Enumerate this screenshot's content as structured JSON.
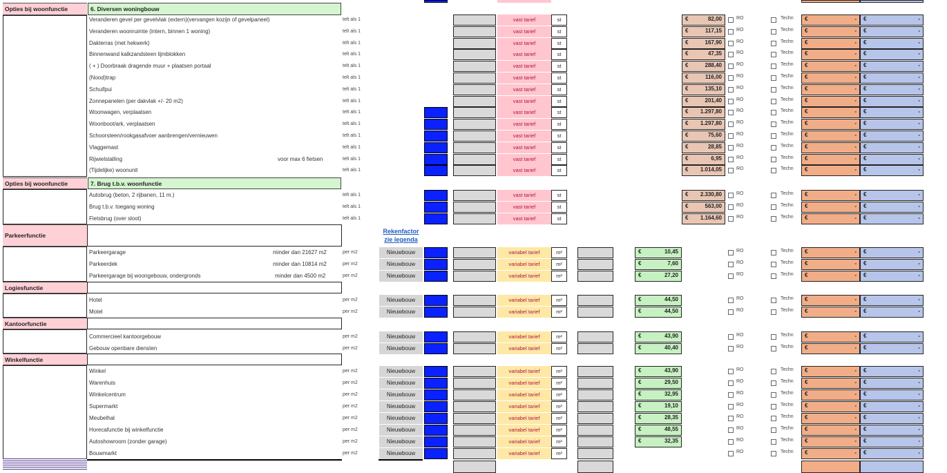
{
  "sections": [
    {
      "category": "Opties bij woonfunctie",
      "title": "6. Diversen woningbouw"
    },
    {
      "category": "Opties bij woonfunctie",
      "title": "7. Brug t.b.v. woonfunctie"
    },
    {
      "category": "Parkeerfunctie",
      "title": ""
    },
    {
      "category": "Logiesfunctie",
      "title": ""
    },
    {
      "category": "Kantoorfunctie",
      "title": ""
    },
    {
      "category": "Winkelfunctie",
      "title": ""
    }
  ],
  "labels": {
    "telt": "telt als 1",
    "perm2": "per m2",
    "vast": "vast tarief",
    "variabel": "variabel tarief",
    "st": "st",
    "m2": "m²",
    "nieuwbouw": "Nieuwbouw",
    "ro": "RO",
    "techn": "Techn",
    "eur": "€",
    "dash": "-",
    "rekenfactor": "Rekenfactor",
    "legenda": "zie legenda"
  },
  "rows_fixed": [
    {
      "name": "Veranderen gevel per gevelvlak (extern)(vervangen kozijn of gevelpaneel)",
      "price": "82,00",
      "blue": false
    },
    {
      "name": "Veranderen woonruimte (intern, binnen 1 woning)",
      "price": "117,15",
      "blue": false
    },
    {
      "name": "Dakterras (met hekwerk)",
      "price": "167,90",
      "blue": false
    },
    {
      "name": "Binnenwand kalkzandsteen lijmblokken",
      "price": "47,35",
      "blue": false
    },
    {
      "name": "( + )  Doorbraak dragende muur + plaatsen portaal",
      "price": "288,40",
      "blue": false
    },
    {
      "name": "(Nood)trap",
      "price": "116,00",
      "blue": false
    },
    {
      "name": "Schuifpui",
      "price": "135,10",
      "blue": false
    },
    {
      "name": "Zonnepanelen (per dakvlak +/- 20 m2)",
      "price": "201,40",
      "blue": false
    },
    {
      "name": "Woonwagen,     verplaatsen",
      "price": "1.297,80",
      "blue": true
    },
    {
      "name": "Woonboot/ark,  verplaatsen",
      "price": "1.297,80",
      "blue": true
    },
    {
      "name": "Schoorsteen/rookgasafvoer aanbrengen/vernieuwen",
      "price": "75,60",
      "blue": true
    },
    {
      "name": "Vlaggemast",
      "price": "28,85",
      "blue": true
    },
    {
      "name": "Rijwielstalling",
      "note": "voor max 6 fietsen",
      "price": "6,95",
      "blue": true
    },
    {
      "name": "(Tijdelijke) woonunit",
      "price": "1.014,05",
      "blue": true
    }
  ],
  "rows_brug": [
    {
      "name": "Autobrug (beton, 2 rijbanen, 11 m.)",
      "price": "2.330,80"
    },
    {
      "name": "Brug t.b.v. toegang woning",
      "price": "563,00"
    },
    {
      "name": "Fietsbrug (over sloot)",
      "price": "1.164,60"
    }
  ],
  "rows_parkeer": [
    {
      "name": "Parkeergarage",
      "note": "minder dan 21627 m2",
      "price": "10,45"
    },
    {
      "name": "Parkeerdek",
      "note": "minder dan 10814 m2",
      "price": "7,60"
    },
    {
      "name": "Parkeergarage bij woongebouw, ondergronds",
      "note": "minder dan 4500 m2",
      "price": "27,20"
    }
  ],
  "rows_logies": [
    {
      "name": "Hotel",
      "price": "44,50"
    },
    {
      "name": "Motel",
      "price": "44,50"
    }
  ],
  "rows_kantoor": [
    {
      "name": "Commercieel kantoorgebouw",
      "price": "43,90"
    },
    {
      "name": "Gebouw openbare diensten",
      "price": "40,40"
    }
  ],
  "rows_winkel": [
    {
      "name": "Winkel",
      "price": "43,90"
    },
    {
      "name": "Warenhuis",
      "price": "29,50"
    },
    {
      "name": "Winkelcentrum",
      "price": "32,95"
    },
    {
      "name": "Supermarkt",
      "price": "19,10"
    },
    {
      "name": "Meubelhal",
      "price": "28,35"
    },
    {
      "name": "Horecafunctie bij winkelfunctie",
      "price": "48,55"
    },
    {
      "name": "Autoshowroom (zonder garage)",
      "price": "32,35"
    },
    {
      "name": "Bouwmarkt",
      "price": ""
    }
  ],
  "colors": {
    "blue": "#0a22ff",
    "pink": "#ffc6cf",
    "yellow": "#fde8a6",
    "green": "#c7f1c2",
    "orange": "#f1ad87",
    "lightblue": "#b7c5ea",
    "brown": "#e9c6b4"
  }
}
